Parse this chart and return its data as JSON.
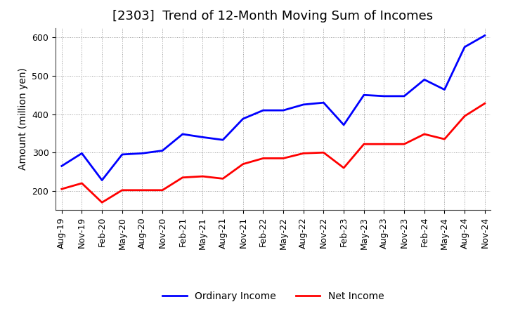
{
  "title": "[2303]  Trend of 12-Month Moving Sum of Incomes",
  "ylabel": "Amount (million yen)",
  "xlabels": [
    "Aug-19",
    "Nov-19",
    "Feb-20",
    "May-20",
    "Aug-20",
    "Nov-20",
    "Feb-21",
    "May-21",
    "Aug-21",
    "Nov-21",
    "Feb-22",
    "May-22",
    "Aug-22",
    "Nov-22",
    "Feb-23",
    "May-23",
    "Aug-23",
    "Nov-23",
    "Feb-24",
    "May-24",
    "Aug-24",
    "Nov-24"
  ],
  "ordinary_income": [
    265,
    298,
    228,
    295,
    298,
    305,
    348,
    340,
    333,
    388,
    410,
    410,
    425,
    430,
    372,
    450,
    447,
    447,
    490,
    464,
    575,
    605
  ],
  "net_income": [
    205,
    220,
    170,
    202,
    202,
    202,
    235,
    238,
    232,
    270,
    285,
    285,
    298,
    300,
    260,
    322,
    322,
    322,
    348,
    335,
    395,
    428
  ],
  "ordinary_color": "#0000FF",
  "net_color": "#FF0000",
  "ylim_min": 150,
  "ylim_max": 625,
  "yticks": [
    200,
    300,
    400,
    500,
    600
  ],
  "bg_color": "#FFFFFF",
  "grid_color": "#999999",
  "title_fontsize": 13,
  "axis_label_fontsize": 10,
  "tick_fontsize": 9,
  "legend_fontsize": 10
}
